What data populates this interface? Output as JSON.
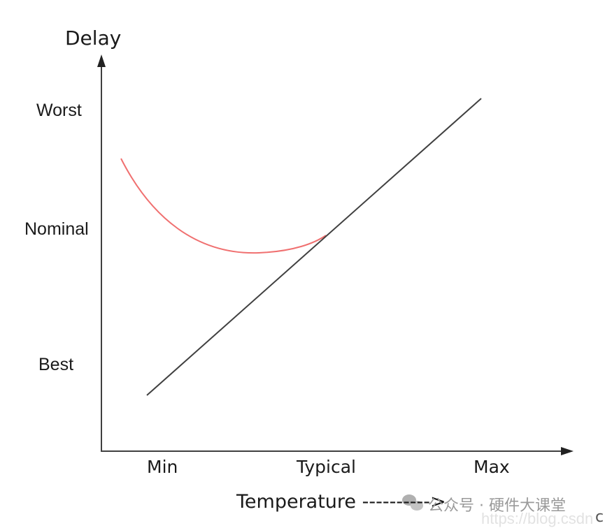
{
  "y_axis": {
    "title": "Delay",
    "ticks": [
      "Worst",
      "Nominal",
      "Best"
    ]
  },
  "x_axis": {
    "title": "Temperature ---------->",
    "ticks": [
      "Min",
      "Typical",
      "Max"
    ]
  },
  "curves": [
    {
      "shape": "u-shaped",
      "color": "#f07070"
    },
    {
      "shape": "linear-increasing",
      "color": "#404040"
    }
  ],
  "watermark": {
    "icon": "wechat-icon",
    "text": "公众号 · 硬件大课堂",
    "url": "https://blog.csdn",
    "trailing": "c"
  }
}
